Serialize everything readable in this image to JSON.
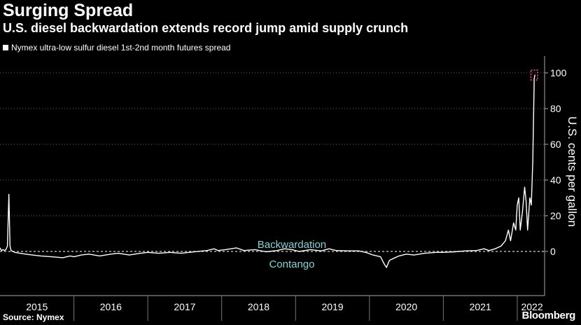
{
  "title": "Surging Spread",
  "subtitle": "U.S. diesel backwardation extends record jump amid supply crunch",
  "legend": {
    "label": "Nymex ultra-low sulfur diesel 1st-2nd month futures spread",
    "color": "#ffffff"
  },
  "source": "Source: Nymex",
  "brand": "Bloomberg",
  "chart_data": {
    "type": "line",
    "title": "Surging Spread",
    "ylabel": "U.S. cents per gallon",
    "xlabel": "",
    "xlim": [
      2015.0,
      2022.37
    ],
    "ylim": [
      -20,
      110
    ],
    "yticks": [
      0,
      20,
      40,
      60,
      80,
      100
    ],
    "x_tick_labels": [
      "2015",
      "2016",
      "2017",
      "2018",
      "2019",
      "2020",
      "2021",
      "2022"
    ],
    "x_tick_positions": [
      2015.5,
      2016.5,
      2017.5,
      2018.5,
      2019.5,
      2020.5,
      2021.5,
      2022.2
    ],
    "grid": true,
    "annotations": [
      {
        "text": "Backwardation",
        "x": 2018.95,
        "y": 4
      },
      {
        "text": "Contango",
        "x": 2018.95,
        "y": -7
      }
    ],
    "series": [
      {
        "name": "Nymex ultra-low sulfur diesel 1st-2nd month futures spread",
        "color": "#ffffff",
        "points": [
          [
            2015.0,
            2
          ],
          [
            2015.02,
            0.5
          ],
          [
            2015.04,
            1
          ],
          [
            2015.06,
            0.5
          ],
          [
            2015.08,
            1
          ],
          [
            2015.1,
            3
          ],
          [
            2015.12,
            32
          ],
          [
            2015.135,
            3
          ],
          [
            2015.15,
            0.5
          ],
          [
            2015.2,
            -0.5
          ],
          [
            2015.3,
            -1.2
          ],
          [
            2015.4,
            -1.8
          ],
          [
            2015.55,
            -2.5
          ],
          [
            2015.7,
            -3
          ],
          [
            2015.85,
            -3.5
          ],
          [
            2015.95,
            -2.5
          ],
          [
            2016.0,
            -3
          ],
          [
            2016.1,
            -2
          ],
          [
            2016.2,
            -1.5
          ],
          [
            2016.35,
            -2.5
          ],
          [
            2016.5,
            -1.5
          ],
          [
            2016.6,
            -1
          ],
          [
            2016.75,
            -2
          ],
          [
            2016.9,
            -1
          ],
          [
            2017.0,
            -0.5
          ],
          [
            2017.15,
            -1
          ],
          [
            2017.3,
            -0.5
          ],
          [
            2017.45,
            -1
          ],
          [
            2017.6,
            -0.3
          ],
          [
            2017.8,
            0.5
          ],
          [
            2017.9,
            1.5
          ],
          [
            2017.95,
            0.5
          ],
          [
            2018.05,
            1
          ],
          [
            2018.2,
            2
          ],
          [
            2018.3,
            0.5
          ],
          [
            2018.45,
            1
          ],
          [
            2018.6,
            -0.2
          ],
          [
            2018.75,
            0.5
          ],
          [
            2018.85,
            1.5
          ],
          [
            2018.95,
            1
          ],
          [
            2019.05,
            0
          ],
          [
            2019.2,
            1
          ],
          [
            2019.35,
            0.3
          ],
          [
            2019.45,
            1.5
          ],
          [
            2019.55,
            0.5
          ],
          [
            2019.7,
            0.3
          ],
          [
            2019.85,
            0.3
          ],
          [
            2019.95,
            -0.5
          ],
          [
            2020.05,
            -2
          ],
          [
            2020.15,
            -3
          ],
          [
            2020.2,
            -7
          ],
          [
            2020.23,
            -9
          ],
          [
            2020.27,
            -5
          ],
          [
            2020.32,
            -4
          ],
          [
            2020.4,
            -2.5
          ],
          [
            2020.5,
            -1.5
          ],
          [
            2020.6,
            -2
          ],
          [
            2020.75,
            -1
          ],
          [
            2020.9,
            -0.5
          ],
          [
            2021.0,
            -0.5
          ],
          [
            2021.15,
            -0.2
          ],
          [
            2021.3,
            0.3
          ],
          [
            2021.45,
            0.5
          ],
          [
            2021.55,
            1.5
          ],
          [
            2021.62,
            0.5
          ],
          [
            2021.7,
            1.5
          ],
          [
            2021.78,
            3
          ],
          [
            2021.84,
            6
          ],
          [
            2021.88,
            12
          ],
          [
            2021.91,
            6
          ],
          [
            2021.95,
            16
          ],
          [
            2021.98,
            12
          ],
          [
            2022.0,
            26
          ],
          [
            2022.02,
            30
          ],
          [
            2022.04,
            12
          ],
          [
            2022.07,
            22
          ],
          [
            2022.1,
            36
          ],
          [
            2022.12,
            28
          ],
          [
            2022.14,
            12
          ],
          [
            2022.17,
            30
          ],
          [
            2022.19,
            26
          ],
          [
            2022.21,
            50
          ],
          [
            2022.23,
            97
          ],
          [
            2022.24,
            99
          ]
        ]
      }
    ],
    "highlight_box": {
      "x": [
        2022.185,
        2022.275
      ],
      "y": [
        96,
        101.5
      ],
      "color": "#ff4fa3"
    }
  }
}
